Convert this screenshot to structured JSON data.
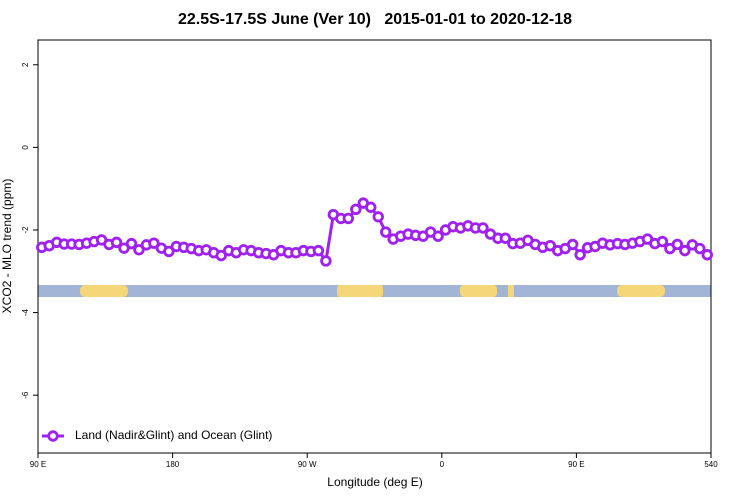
{
  "chart_data": {
    "type": "line",
    "title": "22.5S-17.5S June (Ver 10)   2015-01-01 to 2020-12-18",
    "x_label": "Longitude (deg E)",
    "y_label": "XCO2 - MLO trend (ppm)",
    "xlim": [
      90,
      540
    ],
    "ylim": [
      -7.4,
      2.6
    ],
    "xticks": [
      {
        "value": 90,
        "label": "90 E"
      },
      180,
      {
        "value": 270,
        "label": "90 W"
      },
      {
        "value": 360,
        "label": "0"
      },
      {
        "value": 450,
        "label": "90 E"
      },
      540
    ],
    "yticks": [
      2,
      0,
      -2,
      -4,
      -6
    ],
    "grid": false,
    "legend": "bottom-left",
    "x": [
      92.5,
      97.5,
      102.5,
      107.5,
      112.5,
      117.5,
      122.5,
      127.5,
      132.5,
      137.5,
      142.5,
      147.5,
      152.5,
      157.5,
      162.5,
      167.5,
      172.5,
      177.5,
      182.5,
      187.5,
      192.5,
      197.5,
      202.5,
      207.5,
      212.5,
      217.5,
      222.5,
      227.5,
      232.5,
      237.5,
      242.5,
      247.5,
      252.5,
      257.5,
      262.5,
      267.5,
      272.5,
      277.5,
      282.5,
      287.5,
      292.5,
      297.5,
      302.5,
      307.5,
      312.5,
      317.5,
      322.5,
      327.5,
      332.5,
      337.5,
      342.5,
      347.5,
      352.5,
      357.5,
      362.5,
      367.5,
      372.5,
      377.5,
      382.5,
      387.5,
      392.5,
      397.5,
      402.5,
      407.5,
      412.5,
      417.5,
      422.5,
      427.5,
      432.5,
      437.5,
      442.5,
      447.5,
      452.5,
      457.5,
      462.5,
      467.5,
      472.5,
      477.5,
      482.5,
      487.5,
      492.5,
      497.5,
      502.5,
      507.5,
      512.5,
      517.5,
      522.5,
      527.5,
      532.5,
      537.5
    ],
    "series": [
      {
        "name": "Land (Nadir&Glint) and Ocean (Glint)",
        "color": "#a020f0",
        "values": [
          -2.42,
          -2.38,
          -2.3,
          -2.34,
          -2.34,
          -2.35,
          -2.32,
          -2.28,
          -2.24,
          -2.35,
          -2.3,
          -2.44,
          -2.33,
          -2.48,
          -2.36,
          -2.32,
          -2.44,
          -2.52,
          -2.4,
          -2.42,
          -2.45,
          -2.5,
          -2.48,
          -2.55,
          -2.62,
          -2.5,
          -2.55,
          -2.48,
          -2.5,
          -2.55,
          -2.57,
          -2.6,
          -2.5,
          -2.55,
          -2.55,
          -2.5,
          -2.52,
          -2.5,
          -2.75,
          -1.63,
          -1.72,
          -1.72,
          -1.5,
          -1.35,
          -1.45,
          -1.68,
          -2.05,
          -2.22,
          -2.15,
          -2.1,
          -2.13,
          -2.15,
          -2.05,
          -2.15,
          -2.0,
          -1.92,
          -1.95,
          -1.9,
          -1.95,
          -1.95,
          -2.1,
          -2.2,
          -2.2,
          -2.33,
          -2.32,
          -2.25,
          -2.35,
          -2.42,
          -2.38,
          -2.5,
          -2.45,
          -2.35,
          -2.6,
          -2.43,
          -2.4,
          -2.32,
          -2.36,
          -2.33,
          -2.35,
          -2.32,
          -2.28,
          -2.22,
          -2.33,
          -2.28,
          -2.45,
          -2.35,
          -2.5,
          -2.36,
          -2.45,
          -2.6
        ]
      }
    ]
  }
}
